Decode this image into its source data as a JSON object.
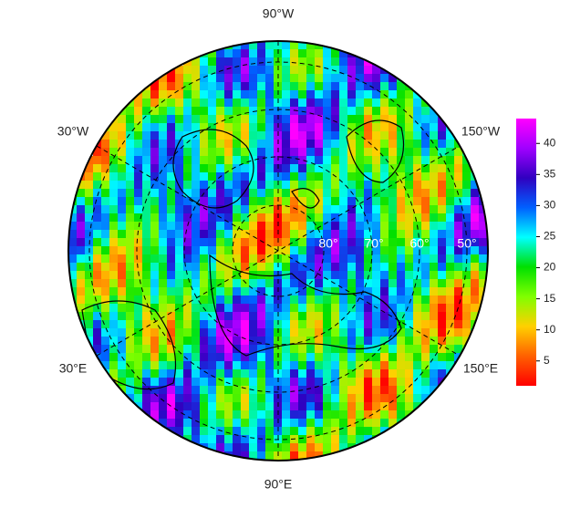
{
  "map": {
    "meridian_labels": {
      "top": "90°W",
      "upper_left": "30°W",
      "upper_right": "150°W",
      "lower_left": "30°E",
      "lower_right": "150°E",
      "bottom": "90°E"
    },
    "latitude_labels": [
      "80°",
      "70°",
      "60°",
      "50°"
    ]
  },
  "colorbar": {
    "range": [
      1,
      44
    ],
    "ticks": [
      5,
      10,
      15,
      20,
      25,
      30,
      35,
      40
    ],
    "colors": [
      "#ff0000",
      "#ff6000",
      "#ffd000",
      "#80ff00",
      "#00e000",
      "#00ffff",
      "#0060ff",
      "#3000c0",
      "#a000ff",
      "#ff00ff"
    ]
  }
}
